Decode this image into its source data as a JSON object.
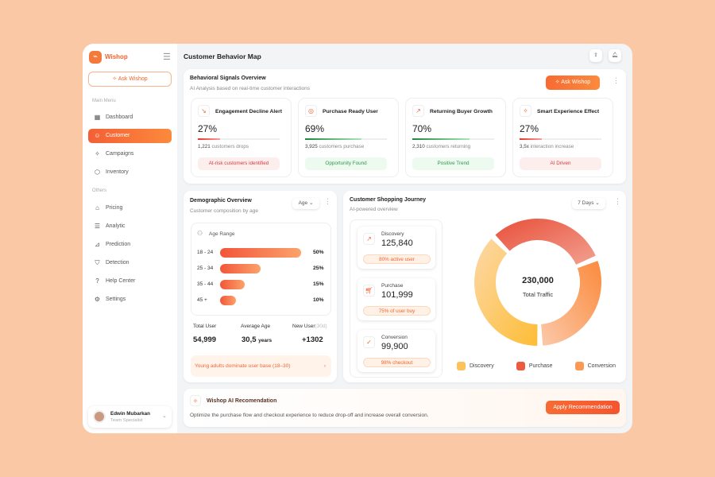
{
  "app": {
    "name": "Wishop",
    "ask_label": "Ask Wishop"
  },
  "sidebar": {
    "main_menu_label": "Main Menu",
    "others_label": "Others",
    "main_items": [
      {
        "label": "Dashboard",
        "icon": "grid-icon"
      },
      {
        "label": "Customer",
        "icon": "user-icon",
        "active": true
      },
      {
        "label": "Campaigns",
        "icon": "sparkle-icon"
      },
      {
        "label": "Inventory",
        "icon": "box-icon"
      }
    ],
    "other_items": [
      {
        "label": "Pricing",
        "icon": "tag-icon"
      },
      {
        "label": "Analytic",
        "icon": "analytic-icon"
      },
      {
        "label": "Prediction",
        "icon": "chart-icon"
      },
      {
        "label": "Detection",
        "icon": "shield-icon"
      },
      {
        "label": "Help Center",
        "icon": "help-icon"
      },
      {
        "label": "Settings",
        "icon": "gear-icon"
      }
    ],
    "user": {
      "name": "Edwin Mubarkan",
      "role": "Team Specialist"
    }
  },
  "header": {
    "title": "Customer Behavior Map"
  },
  "signals": {
    "title": "Behavioral Signals Overview",
    "subtitle": "AI Analysis based on real-time customer interactions",
    "ask_label": "Ask Wishop",
    "cards": [
      {
        "title": "Engagement Decline Alert",
        "value": "27%",
        "progress": 27,
        "count": "1,221",
        "desc": "customers drops",
        "badge": "At-risk customers identified",
        "tone": "red"
      },
      {
        "title": "Purchase Ready User",
        "value": "69%",
        "progress": 69,
        "count": "3,925",
        "desc": "customers purchase",
        "badge": "Opportunity Found",
        "tone": "green"
      },
      {
        "title": "Returning Buyer Growth",
        "value": "70%",
        "progress": 70,
        "count": "2,310",
        "desc": "customers returning",
        "badge": "Positive Trend",
        "tone": "green"
      },
      {
        "title": "Smart Experience Effect",
        "value": "27%",
        "progress": 27,
        "count": "3,5x",
        "desc": "interaction increase",
        "badge": "AI Driven",
        "tone": "red"
      }
    ]
  },
  "demographic": {
    "title": "Demographic Overview",
    "subtitle": "Customer composition by age",
    "filter": "Age",
    "range_label": "Age Range",
    "ages": [
      {
        "label": "18 - 24",
        "pct": "50%",
        "value": 50
      },
      {
        "label": "25 - 34",
        "pct": "25%",
        "value": 25
      },
      {
        "label": "35 - 44",
        "pct": "15%",
        "value": 15
      },
      {
        "label": "45 +",
        "pct": "10%",
        "value": 10
      }
    ],
    "stats": {
      "total_label": "Total User",
      "total": "54,999",
      "avg_label": "Average Age",
      "avg": "30,5",
      "avg_unit": "years",
      "new_label": "New User",
      "new_period": "(30d)",
      "new": "+1302"
    },
    "insight": "Young adults dominate user base (18–30)"
  },
  "journey": {
    "title": "Customer Shopping Journey",
    "subtitle": "AI-powered overview",
    "filter": "7 Days",
    "steps": [
      {
        "label": "Discovery",
        "value": "125,840",
        "note": "80% active user",
        "icon": "trend-icon"
      },
      {
        "label": "Purchase",
        "value": "101,999",
        "note": "75% of user buy",
        "icon": "cart-icon"
      },
      {
        "label": "Conversion",
        "value": "99,900",
        "note": "98% checkout",
        "icon": "check-icon"
      }
    ],
    "total": "230,000",
    "total_label": "Total Traffic"
  },
  "chart_data": {
    "type": "pie",
    "variant": "donut",
    "categories": [
      "Purchase",
      "Conversion",
      "Discovery"
    ],
    "values": [
      101999,
      99900,
      125840
    ],
    "colors": {
      "Discovery": "#fdc35a",
      "Purchase": "#ec5a3f",
      "Conversion": "#fb9a55"
    },
    "legend": [
      "Discovery",
      "Purchase",
      "Conversion"
    ],
    "legend_position": "bottom",
    "center_value": "230,000",
    "center_label": "Total Traffic"
  },
  "recommendation": {
    "title": "Wishop AI Recomendation",
    "text": "Optimize the purchase flow and checkout experience to reduce drop-off and increase overall conversion.",
    "button": "Apply Recommendation"
  },
  "colors": {
    "accent": "#f0632e",
    "background": "#fbc8a5"
  }
}
